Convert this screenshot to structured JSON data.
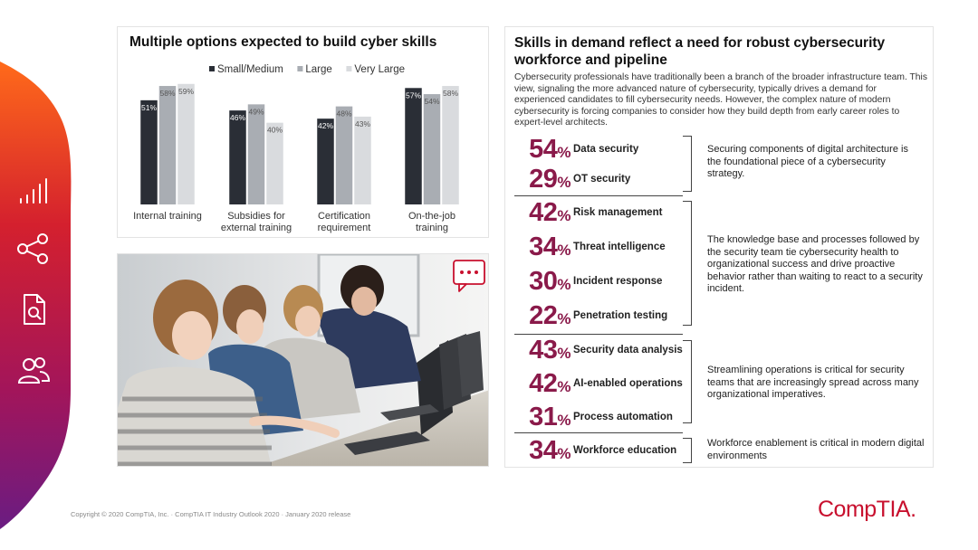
{
  "chart_data": {
    "type": "bar",
    "title": "Multiple options expected to build cyber skills",
    "categories": [
      "Internal training",
      "Subsidies for\nexternal training",
      "Certification\nrequirement",
      "On-the-job\ntraining"
    ],
    "series": [
      {
        "name": "Small/Medium",
        "values": [
          51,
          46,
          42,
          57
        ],
        "color": "#2a2e36"
      },
      {
        "name": "Large",
        "values": [
          58,
          49,
          48,
          54
        ],
        "color": "#a9adb3"
      },
      {
        "name": "Very Large",
        "values": [
          59,
          40,
          43,
          58
        ],
        "color": "#d9dbde"
      }
    ],
    "value_suffix": "%",
    "ylim": [
      0,
      62
    ],
    "legend": "top-right",
    "grid": false
  },
  "right": {
    "title": "Skills in demand reflect a need for robust cybersecurity workforce and pipeline",
    "intro": "Cybersecurity professionals have traditionally been a branch of the broader infrastructure team. This view, signaling the more advanced nature of cybersecurity, typically drives a demand for experienced candidates to fill cybersecurity needs. However, the complex nature of modern cybersecurity is forcing companies to consider how they build depth from early career roles to expert-level architects.",
    "groups": [
      {
        "items": [
          {
            "pct": "54",
            "label": "Data security"
          },
          {
            "pct": "29",
            "label": "OT security"
          }
        ],
        "desc": "Securing components of digital architecture is the foundational piece of a cybersecurity strategy."
      },
      {
        "items": [
          {
            "pct": "42",
            "label": "Risk management"
          },
          {
            "pct": "34",
            "label": "Threat intelligence"
          },
          {
            "pct": "30",
            "label": "Incident response"
          },
          {
            "pct": "22",
            "label": "Penetration testing"
          }
        ],
        "desc": "The knowledge base and processes followed by the security team tie cybersecurity health to organizational success and drive proactive behavior rather than waiting to react to a security incident."
      },
      {
        "items": [
          {
            "pct": "43",
            "label": "Security data analysis"
          },
          {
            "pct": "42",
            "label": "AI-enabled operations"
          },
          {
            "pct": "31",
            "label": "Process automation"
          }
        ],
        "desc": "Streamlining operations is critical for security teams that are increasingly spread across many organizational imperatives."
      },
      {
        "items": [
          {
            "pct": "34",
            "label": "Workforce education"
          }
        ],
        "desc": "Workforce enablement is critical in modern digital environments"
      }
    ],
    "percent_symbol": "%"
  },
  "footer": {
    "copyright": "Copyright © 2020 CompTIA, Inc. · CompTIA IT Industry Outlook 2020 · January 2020 release",
    "logo": "CompTIA."
  },
  "icons": [
    "bar-chart-icon",
    "share-icon",
    "document-search-icon",
    "people-icon",
    "chat-bubble-icon"
  ],
  "colors": {
    "accent": "#8a1a4a",
    "brand": "#c8102e",
    "band_top": "#e8531e",
    "band_bottom": "#7a1a7e"
  }
}
